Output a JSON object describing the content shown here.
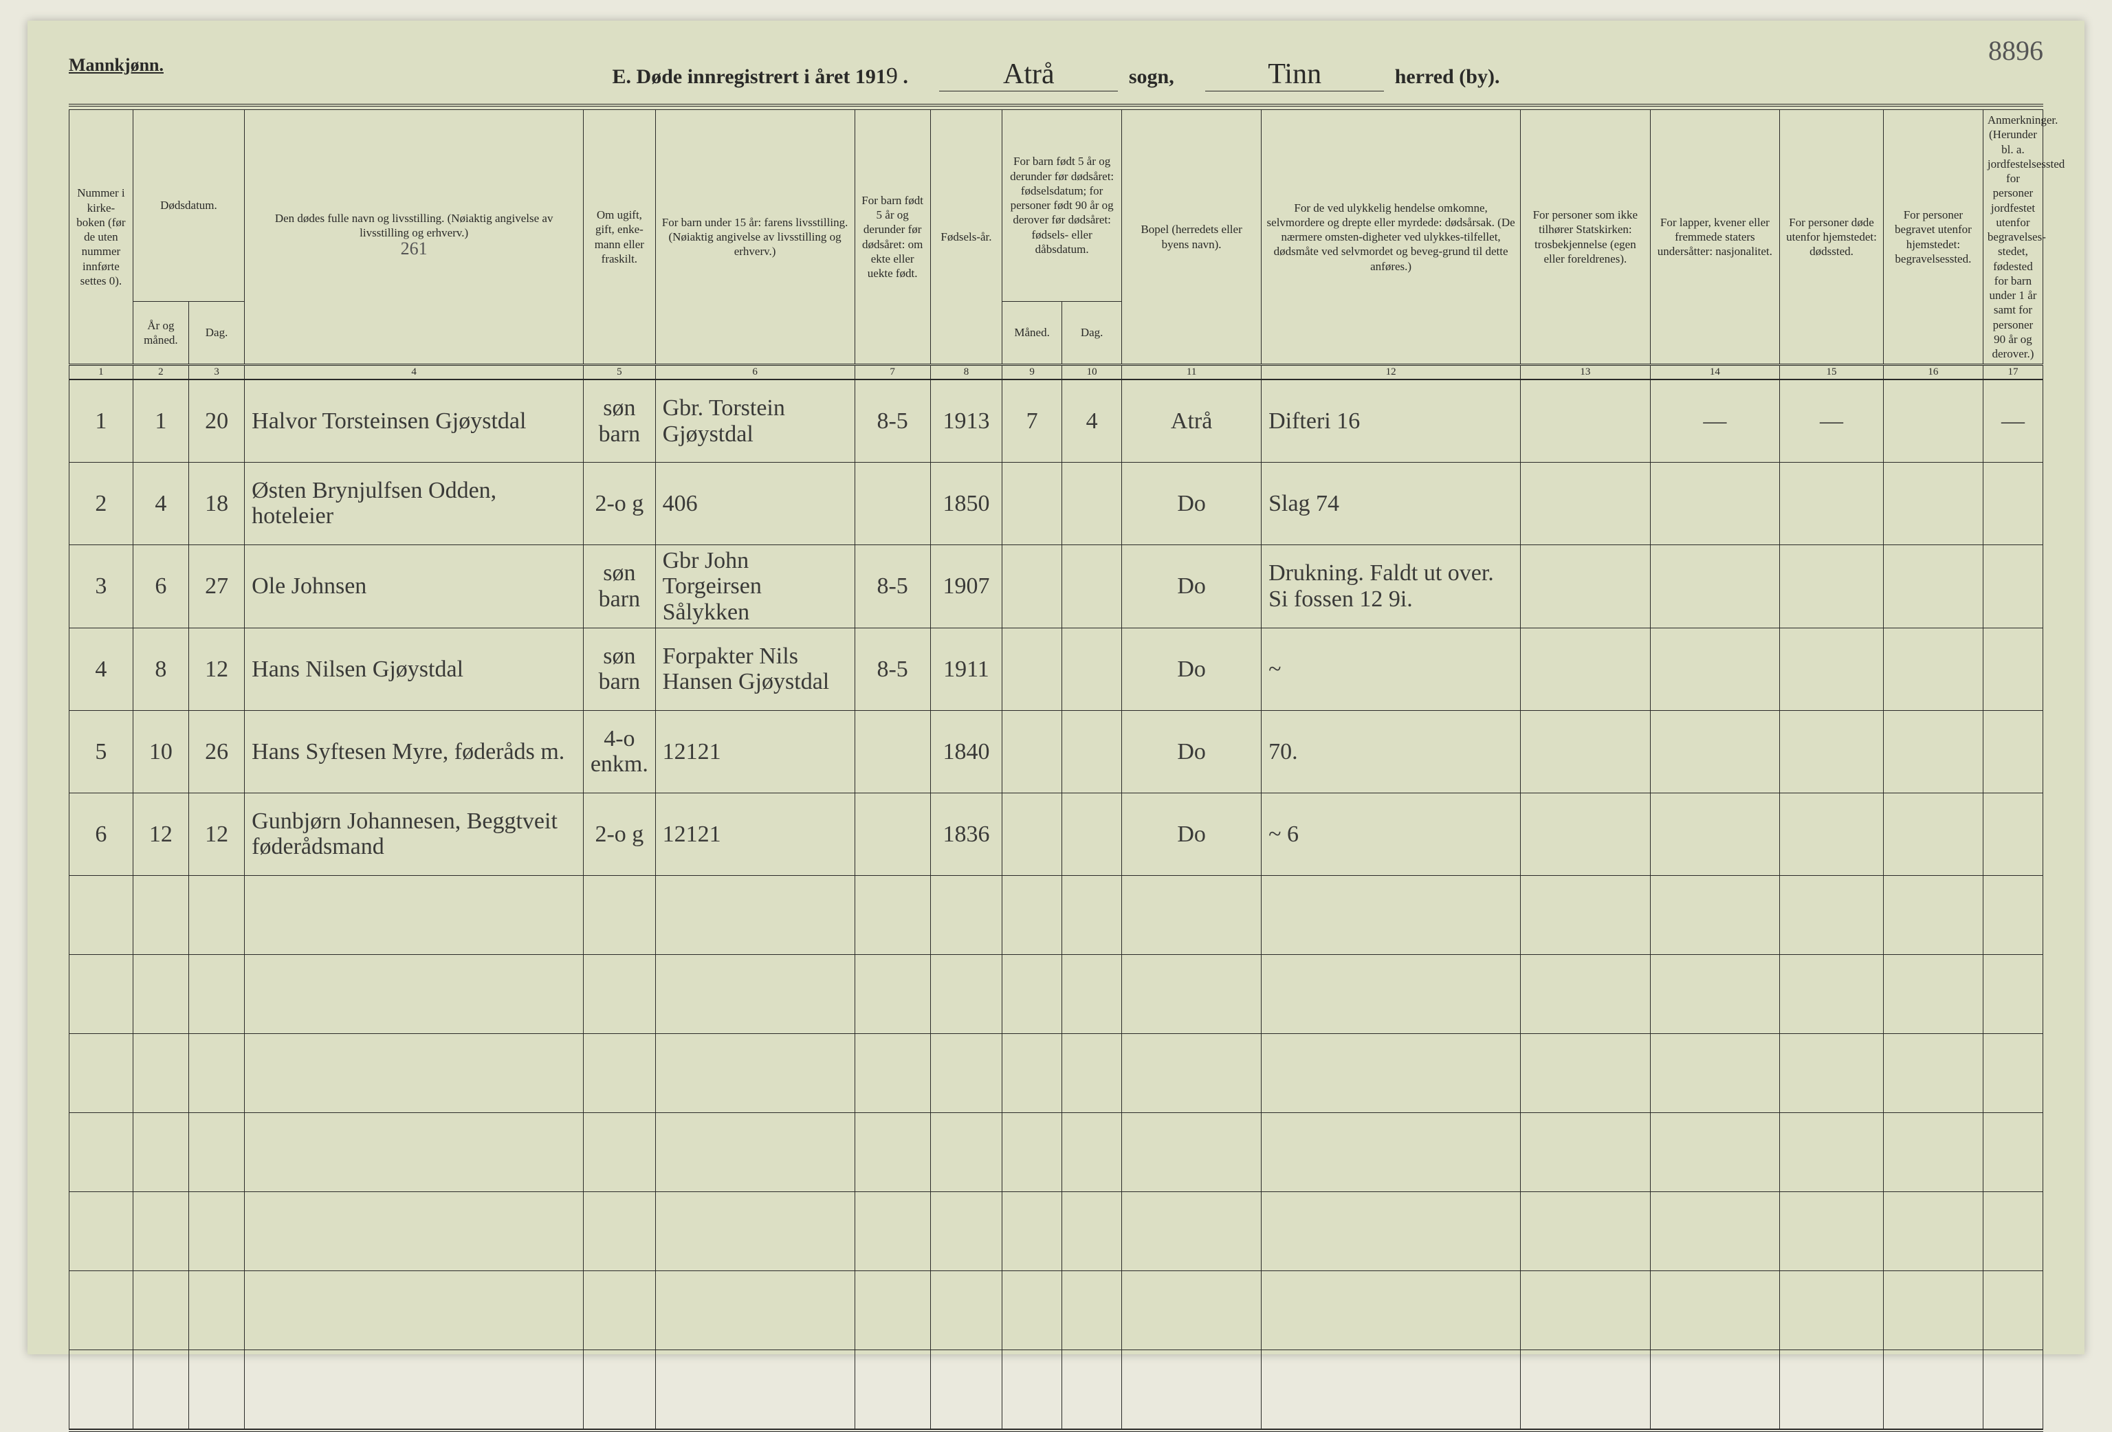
{
  "corner_number": "8896",
  "pretitle": "Mannkjønn.",
  "title": {
    "prefix": "E. Døde innregistrert i året 191",
    "year_digit": "9",
    "suffix1": " .",
    "sogn_value": "Atrå",
    "sogn_label": "sogn,",
    "herred_value": "Tinn",
    "herred_label": "herred (by)."
  },
  "headers": {
    "c1": "Nummer i kirke-boken (før de uten nummer innførte settes 0).",
    "c2": "Dødsdatum.",
    "c2a": "År og måned.",
    "c2b": "Dag.",
    "c4": "Den dødes fulle navn og livsstilling.\n(Nøiaktig angivelse av livsstilling og erhverv.)",
    "c4_note": "261",
    "c5": "Om ugift, gift, enke-mann eller fraskilt.",
    "c6": "For barn under 15 år: farens livsstilling.\n(Nøiaktig angivelse av livsstilling og erhverv.)",
    "c7": "For barn født 5 år og derunder før dødsåret: om ekte eller uekte født.",
    "c8": "Fødsels-år.",
    "c9": "For barn født 5 år og derunder før dødsåret: fødselsdatum; for personer født 90 år og derover før dødsåret: fødsels- eller dåbsdatum.",
    "c9a": "Måned.",
    "c9b": "Dag.",
    "c11": "Bopel (herredets eller byens navn).",
    "c12": "For de ved ulykkelig hendelse omkomne, selvmordere og drepte eller myrdede: dødsårsak.\n(De nærmere omsten-digheter ved ulykkes-tilfellet, dødsmåte ved selvmordet og beveg-grund til dette anføres.)",
    "c13": "For personer som ikke tilhører Statskirken: trosbekjennelse (egen eller foreldrenes).",
    "c14": "For lapper, kvener eller fremmede staters undersåtter: nasjonalitet.",
    "c15": "For personer døde utenfor hjemstedet: dødssted.",
    "c16": "For personer begravet utenfor hjemstedet: begravelsessted.",
    "c17": "Anmerkninger.\n(Herunder bl. a. jordfestelsessted for personer jordfestet utenfor begravelses-stedet, fødested for barn under 1 år samt for personer 90 år og derover.)"
  },
  "colnums": [
    "1",
    "2",
    "3",
    "4",
    "5",
    "6",
    "7",
    "8",
    "9",
    "10",
    "11",
    "12",
    "13",
    "14",
    "15",
    "16",
    "17"
  ],
  "rows": [
    {
      "n": "1",
      "mo": "1",
      "d": "20",
      "name": "Halvor Torsteinsen Gjøystdal",
      "st": "søn barn",
      "father": "Gbr. Torstein Gjøystdal",
      "c7": "8-5",
      "yr": "1913",
      "m": "7",
      "dg": "4",
      "res": "Atrå",
      "cause": "Difteri 16",
      "c13": "",
      "c14": "—",
      "c15": "—",
      "c16": "",
      "c17": "—"
    },
    {
      "n": "2",
      "mo": "4",
      "d": "18",
      "name": "Østen Brynjulfsen Odden, hoteleier",
      "st": "2-o\ng",
      "father": "406",
      "c7": "",
      "yr": "1850",
      "m": "",
      "dg": "",
      "res": "Do",
      "cause": "Slag 74",
      "c13": "",
      "c14": "",
      "c15": "",
      "c16": "",
      "c17": ""
    },
    {
      "n": "3",
      "mo": "6",
      "d": "27",
      "name": "Ole Johnsen",
      "st": "søn barn",
      "father": "Gbr John Torgeirsen Sålykken",
      "c7": "8-5",
      "yr": "1907",
      "m": "",
      "dg": "",
      "res": "Do",
      "cause": "Drukning.\nFaldt ut over.\nSi fossen 12 9i.",
      "c13": "",
      "c14": "",
      "c15": "",
      "c16": "",
      "c17": ""
    },
    {
      "n": "4",
      "mo": "8",
      "d": "12",
      "name": "Hans Nilsen Gjøystdal",
      "st": "søn barn",
      "father": "Forpakter Nils Hansen Gjøystdal",
      "c7": "8-5",
      "yr": "1911",
      "m": "",
      "dg": "",
      "res": "Do",
      "cause": "~",
      "c13": "",
      "c14": "",
      "c15": "",
      "c16": "",
      "c17": ""
    },
    {
      "n": "5",
      "mo": "10",
      "d": "26",
      "name": "Hans Syftesen Myre, føderåds m.",
      "st": "4-o\nenkm.",
      "father": "12121",
      "c7": "",
      "yr": "1840",
      "m": "",
      "dg": "",
      "res": "Do",
      "cause": "70.",
      "c13": "",
      "c14": "",
      "c15": "",
      "c16": "",
      "c17": ""
    },
    {
      "n": "6",
      "mo": "12",
      "d": "12",
      "name": "Gunbjørn Johannesen, Beggtveit føderådsmand",
      "st": "2-o\ng",
      "father": "12121",
      "c7": "",
      "yr": "1836",
      "m": "",
      "dg": "",
      "res": "Do",
      "cause": "~ 6",
      "c13": "",
      "c14": "",
      "c15": "",
      "c16": "",
      "c17": ""
    }
  ],
  "col_widths_pct": [
    3.2,
    2.8,
    2.8,
    17,
    3.6,
    10,
    3.8,
    3.6,
    3,
    3,
    7,
    13,
    6.5,
    6.5,
    5.2,
    5,
    3
  ],
  "colors": {
    "paper": "#dcdfc4",
    "ink": "#2a2a28",
    "script": "#3a3a38"
  }
}
